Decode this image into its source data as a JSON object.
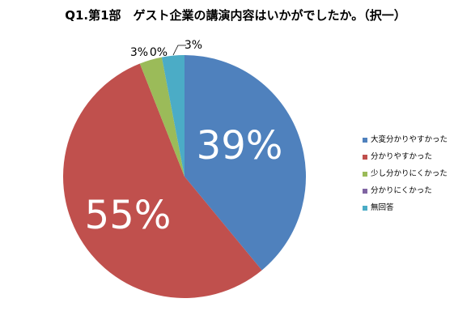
{
  "title": "Q1.第1部　ゲスト企業の講演内容はいかがでしたか。（択一）",
  "chart_data": {
    "type": "pie",
    "title": "Q1.第1部　ゲスト企業の講演内容はいかがでしたか。（択一）",
    "start_angle_deg": 0,
    "direction": "clockwise",
    "slices": [
      {
        "label": "大変分かりやすかった",
        "value": 39,
        "display": "39%",
        "color": "#4F81BD"
      },
      {
        "label": "分かりやすかった",
        "value": 55,
        "display": "55%",
        "color": "#C0504D"
      },
      {
        "label": "少し分かりにくかった",
        "value": 3,
        "display": "3%",
        "color": "#9BBB59"
      },
      {
        "label": "分かりにくかった",
        "value": 0,
        "display": "0%",
        "color": "#8064A2"
      },
      {
        "label": "無回答",
        "value": 3,
        "display": "3%",
        "color": "#4BACC6"
      }
    ],
    "legend_position": "right"
  }
}
